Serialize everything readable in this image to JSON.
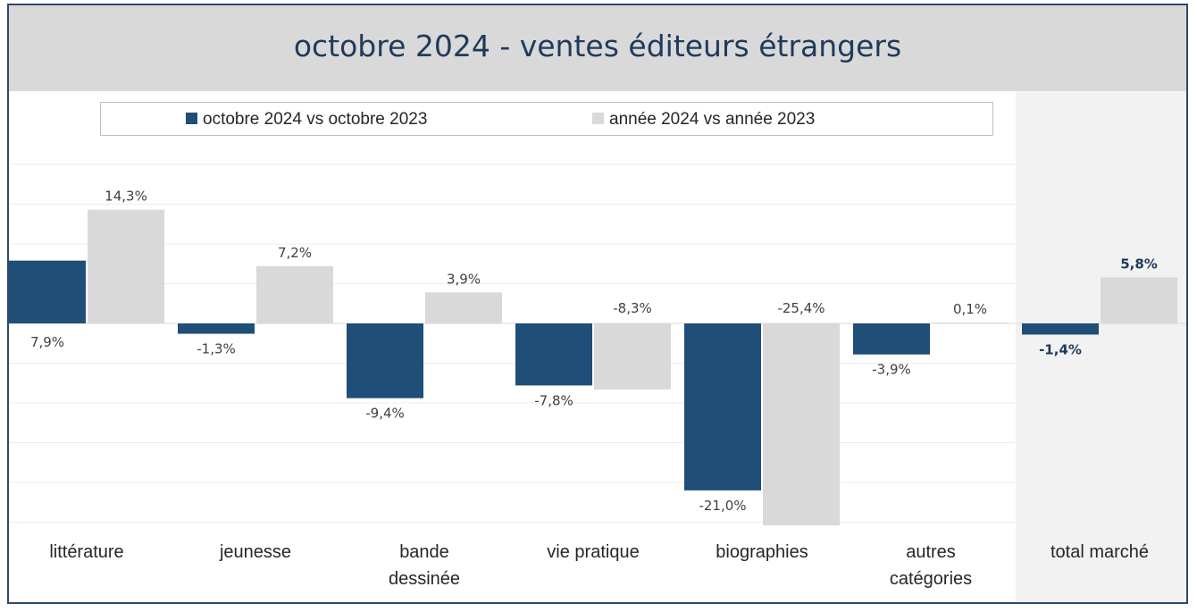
{
  "chart_data": {
    "type": "bar",
    "title": "octobre 2024 - ventes éditeurs étrangers",
    "categories": [
      [
        "littérature"
      ],
      [
        "jeunesse"
      ],
      [
        "bande",
        "dessinée"
      ],
      [
        "vie pratique"
      ],
      [
        "biographies"
      ],
      [
        "autres",
        "catégories"
      ],
      [
        "total marché"
      ]
    ],
    "series": [
      {
        "name": "octobre 2024 vs octobre 2023",
        "color": "#1f4e79",
        "values": [
          7.9,
          -1.3,
          -9.4,
          -7.8,
          -21.0,
          -3.9,
          -1.4
        ],
        "labels": [
          "7,9%",
          "-1,3%",
          "-9,4%",
          "-7,8%",
          "-21,0%",
          "-3,9%",
          "-1,4%"
        ]
      },
      {
        "name": "année 2024 vs année 2023",
        "color": "#d9d9d9",
        "values": [
          14.3,
          7.2,
          3.9,
          -8.3,
          -25.4,
          0.1,
          5.8
        ],
        "labels": [
          "14,3%",
          "7,2%",
          "3,9%",
          "-8,3%",
          "-25,4%",
          "0,1%",
          "5,8%"
        ]
      }
    ],
    "highlighted_category": "total marché",
    "highlight_color": "#f2f2f2",
    "gridlines": true,
    "legend_position": "top"
  }
}
